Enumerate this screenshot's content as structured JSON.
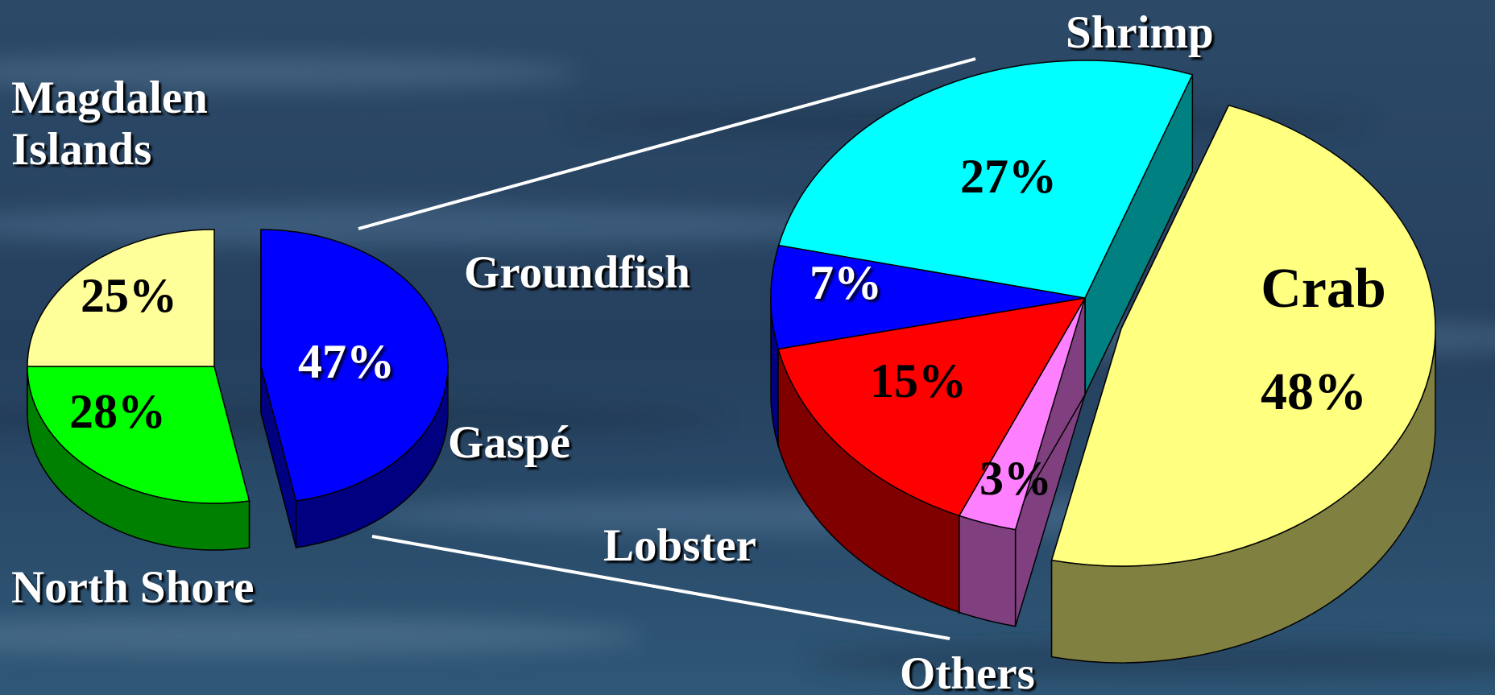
{
  "chart_data": [
    {
      "type": "pie",
      "categories": [
        "Gaspé",
        "North Shore",
        "Magdalen Islands"
      ],
      "values": [
        47,
        28,
        25
      ],
      "value_labels": [
        "47%",
        "28%",
        "25%"
      ],
      "colors": [
        "#0000ff",
        "#00ff00",
        "#ffff99"
      ]
    },
    {
      "type": "pie",
      "categories": [
        "Crab",
        "Others",
        "Lobster",
        "Groundfish",
        "Shrimp"
      ],
      "values": [
        48,
        3,
        15,
        7,
        27
      ],
      "value_labels": [
        "48%",
        "3%",
        "15%",
        "7%",
        "27%"
      ],
      "colors": [
        "#ffff80",
        "#ff80ff",
        "#ff0000",
        "#0000ff",
        "#00ffff"
      ]
    }
  ]
}
